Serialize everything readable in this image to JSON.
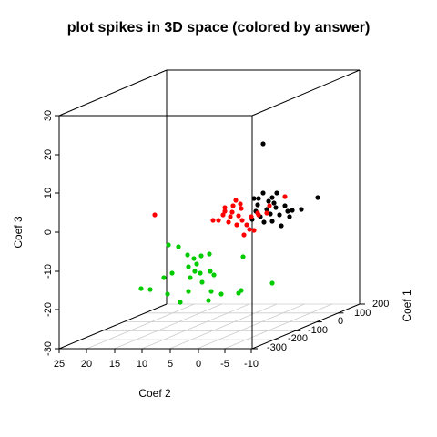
{
  "chart_data": {
    "type": "scatter",
    "title": "plot spikes in  3D space (colored by answer)",
    "xlabel": "Coef 2",
    "ylabel": "Coef 3",
    "zlabel": "Coef 1",
    "x_ticks": [
      "25",
      "20",
      "15",
      "10",
      "5",
      "0",
      "-5",
      "-10"
    ],
    "y_ticks": [
      "30",
      "20",
      "10",
      "0",
      "-10",
      "-20",
      "-30"
    ],
    "z_ticks": [
      "200",
      "100",
      "0",
      "-100",
      "-200",
      "-300"
    ],
    "grid": true,
    "colors": {
      "black": "#000000",
      "red": "#ff0000",
      "green": "#00cc00"
    },
    "series": [
      {
        "color": "black",
        "points": [
          [
            289,
            158
          ],
          [
            349,
            217
          ],
          [
            279,
            218
          ],
          [
            289,
            212
          ],
          [
            304,
            212
          ],
          [
            299,
            217
          ],
          [
            331,
            230
          ],
          [
            283,
            225
          ],
          [
            293,
            230
          ],
          [
            303,
            228
          ],
          [
            313,
            226
          ],
          [
            321,
            231
          ],
          [
            286,
            238
          ],
          [
            297,
            235
          ],
          [
            307,
            236
          ],
          [
            316,
            232
          ],
          [
            281,
            232
          ],
          [
            299,
            243
          ],
          [
            309,
            248
          ],
          [
            290,
            244
          ],
          [
            301,
            223
          ],
          [
            295,
            221
          ],
          [
            284,
            218
          ],
          [
            318,
            238
          ],
          [
            277,
            241
          ]
        ]
      },
      {
        "color": "red",
        "points": [
          [
            170,
            236
          ],
          [
            259,
            220
          ],
          [
            313,
            216
          ],
          [
            247,
            228
          ],
          [
            255,
            233
          ],
          [
            262,
            237
          ],
          [
            240,
            242
          ],
          [
            251,
            244
          ],
          [
            266,
            242
          ],
          [
            276,
            238
          ],
          [
            284,
            236
          ],
          [
            293,
            234
          ],
          [
            247,
            232
          ],
          [
            256,
            226
          ],
          [
            264,
            224
          ],
          [
            245,
            236
          ],
          [
            271,
            247
          ],
          [
            279,
            253
          ],
          [
            268,
            258
          ],
          [
            260,
            247
          ],
          [
            234,
            242
          ],
          [
            283,
            234
          ],
          [
            296,
            226
          ],
          [
            274,
            252
          ],
          [
            253,
            238
          ],
          [
            265,
            229
          ]
        ]
      },
      {
        "color": "green",
        "points": [
          [
            185,
            269
          ],
          [
            196,
            271
          ],
          [
            206,
            280
          ],
          [
            213,
            284
          ],
          [
            221,
            281
          ],
          [
            230,
            279
          ],
          [
            267,
            282
          ],
          [
            216,
            290
          ],
          [
            207,
            293
          ],
          [
            214,
            298
          ],
          [
            220,
            300
          ],
          [
            231,
            298
          ],
          [
            235,
            302
          ],
          [
            189,
            300
          ],
          [
            180,
            305
          ],
          [
            209,
            305
          ],
          [
            222,
            310
          ],
          [
            155,
            317
          ],
          [
            165,
            318
          ],
          [
            184,
            323
          ],
          [
            198,
            332
          ],
          [
            207,
            320
          ],
          [
            232,
            320
          ],
          [
            243,
            323
          ],
          [
            229,
            330
          ],
          [
            262,
            322
          ],
          [
            265,
            319
          ],
          [
            299,
            311
          ]
        ]
      }
    ]
  }
}
